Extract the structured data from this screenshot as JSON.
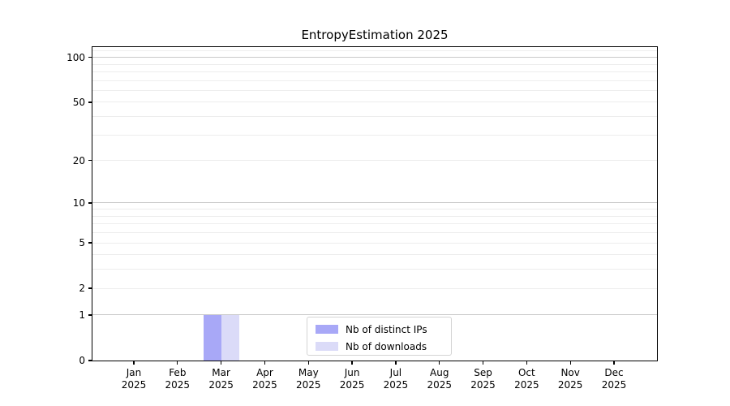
{
  "chart_data": {
    "type": "bar",
    "title": "EntropyEstimation 2025",
    "categories": [
      {
        "month": "Jan",
        "year": "2025"
      },
      {
        "month": "Feb",
        "year": "2025"
      },
      {
        "month": "Mar",
        "year": "2025"
      },
      {
        "month": "Apr",
        "year": "2025"
      },
      {
        "month": "May",
        "year": "2025"
      },
      {
        "month": "Jun",
        "year": "2025"
      },
      {
        "month": "Jul",
        "year": "2025"
      },
      {
        "month": "Aug",
        "year": "2025"
      },
      {
        "month": "Sep",
        "year": "2025"
      },
      {
        "month": "Oct",
        "year": "2025"
      },
      {
        "month": "Nov",
        "year": "2025"
      },
      {
        "month": "Dec",
        "year": "2025"
      }
    ],
    "series": [
      {
        "name": "Nb of distinct IPs",
        "color": "#a8a8f7",
        "values": [
          0,
          0,
          1,
          0,
          0,
          0,
          0,
          0,
          0,
          0,
          0,
          0
        ]
      },
      {
        "name": "Nb of downloads",
        "color": "#dbdbf8",
        "values": [
          0,
          0,
          1,
          0,
          0,
          0,
          0,
          0,
          0,
          0,
          0,
          0
        ]
      }
    ],
    "xlabel": "",
    "ylabel": "",
    "yscale": "log1p",
    "ylim": [
      0,
      117
    ],
    "yticks": [
      0,
      1,
      2,
      5,
      10,
      20,
      50,
      100
    ],
    "major_gridlines": [
      1,
      10,
      100
    ],
    "minor_gridlines": [
      2,
      3,
      4,
      5,
      6,
      7,
      8,
      9,
      20,
      30,
      40,
      50,
      60,
      70,
      80,
      90,
      110
    ],
    "grid": true,
    "legend_position": "lower center"
  },
  "colors": {
    "spine": "#000000",
    "grid_major": "#c9c9c9",
    "grid_minor": "#ededed",
    "background": "#ffffff"
  }
}
